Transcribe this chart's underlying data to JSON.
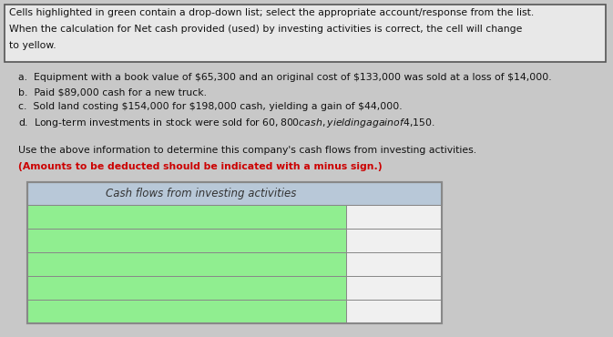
{
  "background_color": "#c8c8c8",
  "instruction_box": {
    "text_lines": [
      "Cells highlighted in green contain a drop-down list; select the appropriate account/response from the list.",
      "When the calculation for Net cash provided (used) by investing activities is correct, the cell will change",
      "to yellow."
    ],
    "bg": "#e8e8e8",
    "border": "#555555",
    "fontsize": 7.8
  },
  "problem_lines": [
    "a.  Equipment with a book value of $65,300 and an original cost of $133,000 was sold at a loss of $14,000.",
    "b.  Paid $89,000 cash for a new truck.",
    "c.  Sold land costing $154,000 for $198,000 cash, yielding a gain of $44,000.",
    "d.  Long-term investments in stock were sold for $60,800 cash, yielding a gain of $4,150."
  ],
  "problem_fontsize": 7.8,
  "instruction2_line1": "Use the above information to determine this company's cash flows from investing activities.",
  "instruction2_line2": "(Amounts to be deducted should be indicated with a minus sign.)",
  "instruction2_fontsize": 7.8,
  "table_header_text": "Cash flows from investing activities",
  "table_header_bg": "#b8c8d8",
  "table_header_fontsize": 8.5,
  "green_color": "#90ee90",
  "white_color": "#f0f0f0",
  "border_color": "#888888",
  "num_data_rows": 5
}
